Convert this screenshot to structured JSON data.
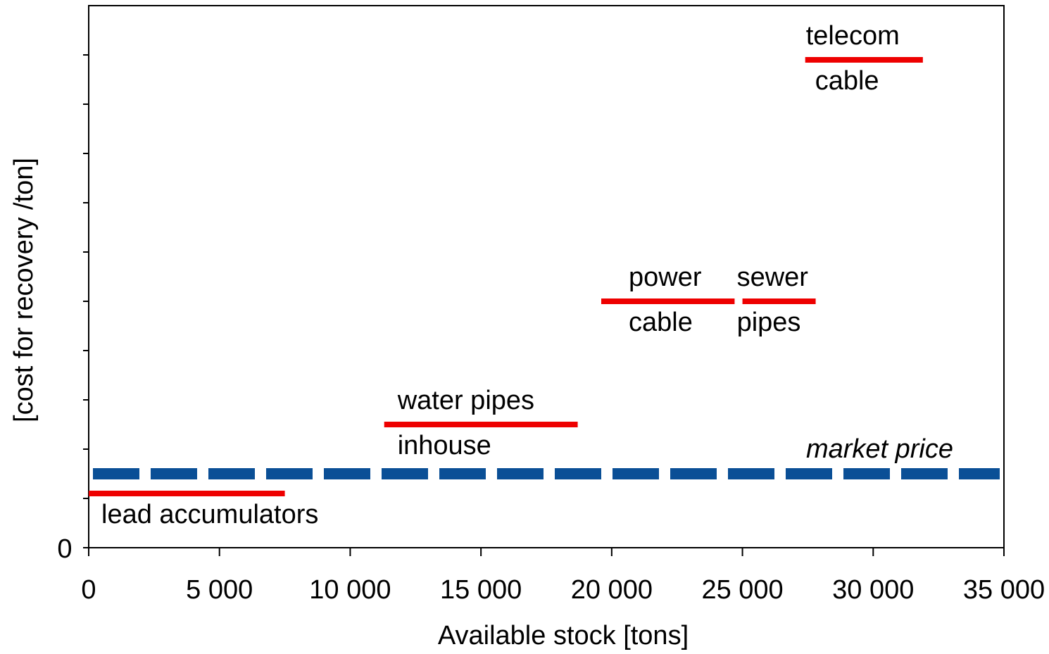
{
  "chart_data": {
    "type": "segments",
    "xlabel": "Available stock [tons]",
    "ylabel": "[cost for recovery /ton]",
    "xlim": [
      0,
      35000
    ],
    "ylim": [
      0,
      11
    ],
    "xticks": [
      0,
      {
        "value": 5000,
        "label": "5 000"
      },
      {
        "value": 10000,
        "label": "10 000"
      },
      {
        "value": 15000,
        "label": "15 000"
      },
      {
        "value": 20000,
        "label": "20 000"
      },
      {
        "value": 25000,
        "label": "25 000"
      },
      {
        "value": 30000,
        "label": "30 000"
      },
      {
        "value": 35000,
        "label": "35 000"
      }
    ],
    "yticks": [
      0
    ],
    "yminor_ticks": [
      1,
      2,
      3,
      4,
      5,
      6,
      7,
      8,
      9,
      10
    ],
    "segments": [
      {
        "label_below": "lead accumulators",
        "x": [
          0,
          7500
        ],
        "y": 1.1,
        "color": "#ee0000"
      },
      {
        "label_above": "water pipes",
        "label_below": "inhouse",
        "x": [
          11300,
          18700
        ],
        "y": 2.5,
        "color": "#ee0000"
      },
      {
        "label_above": "power",
        "label_below": "cable",
        "x": [
          19600,
          24700
        ],
        "y": 5.0,
        "color": "#ee0000"
      },
      {
        "label_above": "sewer",
        "label_below": "pipes",
        "x": [
          25000,
          27800
        ],
        "y": 5.0,
        "color": "#ee0000"
      },
      {
        "label_above": "telecom",
        "label_below": "cable",
        "x": [
          27400,
          31900
        ],
        "y": 9.9,
        "color": "#ee0000"
      }
    ],
    "reference_line": {
      "label": "market price",
      "x": [
        0,
        35000
      ],
      "y": 1.5,
      "color": "#0a4f96",
      "style": "dashed"
    }
  }
}
